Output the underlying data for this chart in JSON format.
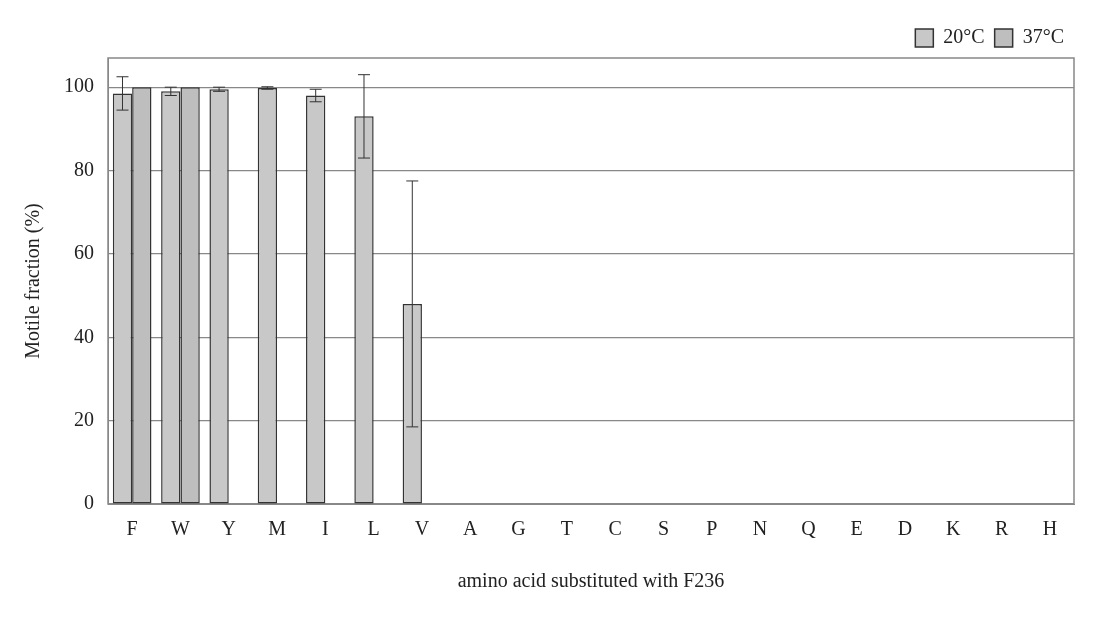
{
  "chart_data": {
    "type": "bar",
    "xlabel": "amino acid substituted with F236",
    "ylabel": "Motile fraction (%)",
    "categories": [
      "F",
      "W",
      "Y",
      "M",
      "I",
      "L",
      "V",
      "A",
      "G",
      "T",
      "C",
      "S",
      "P",
      "N",
      "Q",
      "E",
      "D",
      "K",
      "R",
      "H"
    ],
    "series": [
      {
        "name": "20°C",
        "color": "#c8c8c8",
        "values": [
          98.5,
          99,
          99.5,
          99.8,
          98,
          93,
          48,
          null,
          null,
          null,
          null,
          null,
          null,
          null,
          null,
          null,
          null,
          null,
          null,
          null
        ],
        "errors": [
          4,
          1,
          0.5,
          0.3,
          1.5,
          10,
          29.5,
          null,
          null,
          null,
          null,
          null,
          null,
          null,
          null,
          null,
          null,
          null,
          null,
          null
        ]
      },
      {
        "name": "37°C",
        "color": "#bebebe",
        "values": [
          100,
          100,
          null,
          null,
          null,
          null,
          null,
          null,
          null,
          null,
          null,
          null,
          null,
          null,
          null,
          null,
          null,
          null,
          null,
          null
        ]
      }
    ],
    "ylim": [
      0,
      107
    ],
    "yticks": [
      0,
      20,
      40,
      60,
      80,
      100
    ],
    "grid": "y",
    "legend": "top right"
  }
}
